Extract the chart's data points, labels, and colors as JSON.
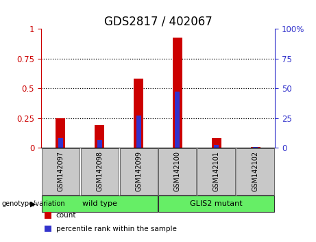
{
  "title": "GDS2817 / 402067",
  "categories": [
    "GSM142097",
    "GSM142098",
    "GSM142099",
    "GSM142100",
    "GSM142101",
    "GSM142102"
  ],
  "red_values": [
    0.25,
    0.19,
    0.58,
    0.93,
    0.08,
    0.003
  ],
  "blue_values": [
    0.08,
    0.065,
    0.27,
    0.47,
    0.025,
    0.003
  ],
  "left_yticks": [
    0,
    0.25,
    0.5,
    0.75,
    1
  ],
  "left_yticklabels": [
    "0",
    "0.25",
    "0.5",
    "0.75",
    "1"
  ],
  "right_yticks": [
    0,
    25,
    50,
    75,
    100
  ],
  "right_yticklabels": [
    "0",
    "25",
    "50",
    "75",
    "100%"
  ],
  "ylim": [
    0,
    1
  ],
  "group_label_text": "genotype/variation",
  "bar_width": 0.25,
  "red_color": "#CC0000",
  "blue_color": "#3333CC",
  "left_tick_color": "#CC0000",
  "right_tick_color": "#3333CC",
  "bg_color": "#FFFFFF",
  "plot_bg": "#FFFFFF",
  "gray_color": "#C8C8C8",
  "green_color": "#66EE66",
  "legend_items": [
    {
      "label": "count",
      "color": "#CC0000"
    },
    {
      "label": "percentile rank within the sample",
      "color": "#3333CC"
    }
  ],
  "groups": [
    {
      "label": "wild type",
      "start": 0,
      "end": 3
    },
    {
      "label": "GLIS2 mutant",
      "start": 3,
      "end": 6
    }
  ],
  "title_fontsize": 12,
  "tick_fontsize": 8.5,
  "cat_fontsize": 7,
  "group_fontsize": 8,
  "legend_fontsize": 7.5
}
